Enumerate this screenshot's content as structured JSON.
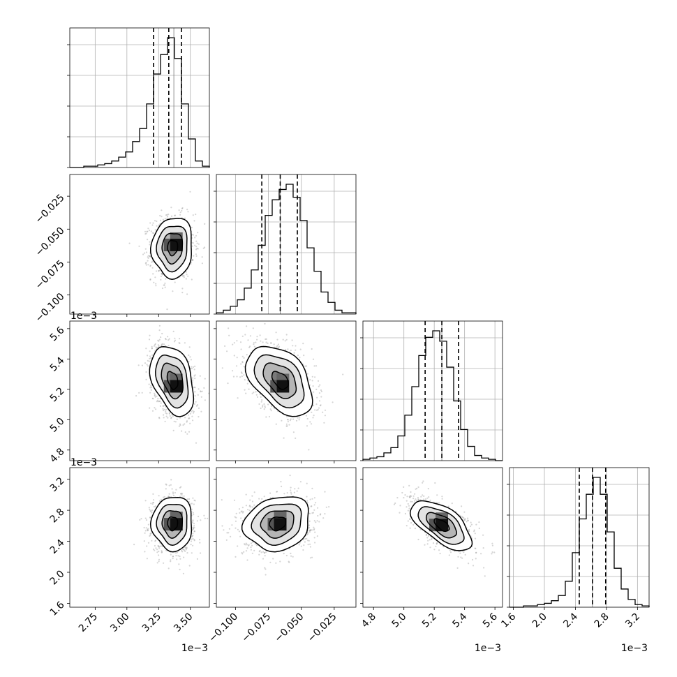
{
  "chart_data": {
    "type": "corner",
    "parameters": 4,
    "offset_label": "1e−3",
    "grid": true,
    "quantile_lines": "dashed",
    "axes": [
      {
        "ticks": [
          2.75,
          3.0,
          3.25,
          3.5
        ],
        "tick_labels": [
          "2.75",
          "3.00",
          "3.25",
          "3.50"
        ],
        "offset": "1e−3",
        "range": [
          2.55,
          3.65
        ]
      },
      {
        "ticks": [
          -0.1,
          -0.075,
          -0.05,
          -0.025
        ],
        "tick_labels": [
          "−0.100",
          "−0.075",
          "−0.050",
          "−0.025"
        ],
        "offset": "",
        "range": [
          -0.1145,
          -0.0085
        ]
      },
      {
        "ticks": [
          4.8,
          5.0,
          5.2,
          5.4,
          5.6
        ],
        "tick_labels": [
          "4.8",
          "5.0",
          "5.2",
          "5.4",
          "5.6"
        ],
        "offset": "1e−3",
        "range": [
          4.73,
          5.65
        ]
      },
      {
        "ticks": [
          1.6,
          2.0,
          2.4,
          2.8,
          3.2
        ],
        "tick_labels": [
          "1.6",
          "2.0",
          "2.4",
          "2.8",
          "3.2"
        ],
        "offset": "1e−3",
        "range": [
          1.55,
          3.35
        ]
      }
    ],
    "histograms": [
      {
        "range": [
          2.55,
          3.65
        ],
        "counts": [
          0,
          0,
          1,
          1,
          2,
          3,
          5,
          8,
          12,
          20,
          30,
          49,
          72,
          87,
          100,
          84,
          49,
          22,
          5,
          1
        ],
        "quantiles": [
          3.21,
          3.33,
          3.43
        ],
        "center_line": 3.37
      },
      {
        "range": [
          -0.1145,
          -0.0085
        ],
        "counts": [
          1,
          3,
          6,
          11,
          20,
          34,
          53,
          76,
          88,
          96,
          100,
          90,
          72,
          51,
          33,
          17,
          9,
          3,
          1,
          1
        ],
        "quantiles": [
          -0.08,
          -0.066,
          -0.053
        ],
        "center_line": -0.066
      },
      {
        "range": [
          4.73,
          5.65
        ],
        "counts": [
          1,
          2,
          3,
          6,
          10,
          19,
          35,
          57,
          81,
          95,
          100,
          92,
          72,
          46,
          24,
          11,
          4,
          2,
          1,
          0
        ],
        "quantiles": [
          5.14,
          5.25,
          5.36
        ],
        "center_line": 5.25
      },
      {
        "range": [
          1.55,
          3.35
        ],
        "counts": [
          0,
          0,
          1,
          1,
          2,
          3,
          5,
          9,
          20,
          42,
          68,
          87,
          100,
          87,
          58,
          30,
          14,
          6,
          2,
          1
        ],
        "quantiles": [
          2.45,
          2.62,
          2.79
        ],
        "center_line": 2.62
      }
    ],
    "pairs": [
      {
        "row": 1,
        "col": 0,
        "mean": [
          3.36,
          -0.064
        ],
        "sd": [
          0.08,
          0.0115
        ],
        "corr": 0.05,
        "mode": [
          3.39,
          -0.062
        ]
      },
      {
        "row": 2,
        "col": 0,
        "mean": [
          3.36,
          5.26
        ],
        "sd": [
          0.085,
          0.115
        ],
        "corr": -0.35,
        "mode": [
          3.39,
          5.22
        ]
      },
      {
        "row": 2,
        "col": 1,
        "mean": [
          -0.066,
          5.26
        ],
        "sd": [
          0.0125,
          0.115
        ],
        "corr": -0.45,
        "mode": [
          -0.064,
          5.22
        ]
      },
      {
        "row": 3,
        "col": 0,
        "mean": [
          3.36,
          2.63
        ],
        "sd": [
          0.08,
          0.175
        ],
        "corr": 0.0,
        "mode": [
          3.39,
          2.62
        ]
      },
      {
        "row": 3,
        "col": 1,
        "mean": [
          -0.068,
          2.63
        ],
        "sd": [
          0.0125,
          0.175
        ],
        "corr": 0.15,
        "mode": [
          -0.066,
          2.62
        ]
      },
      {
        "row": 3,
        "col": 2,
        "mean": [
          5.25,
          2.61
        ],
        "sd": [
          0.1,
          0.16
        ],
        "corr": -0.62,
        "mode": [
          5.25,
          2.61
        ]
      }
    ],
    "contour_levels_sigma": [
      0.5,
      1.0,
      1.5,
      2.0
    ]
  }
}
